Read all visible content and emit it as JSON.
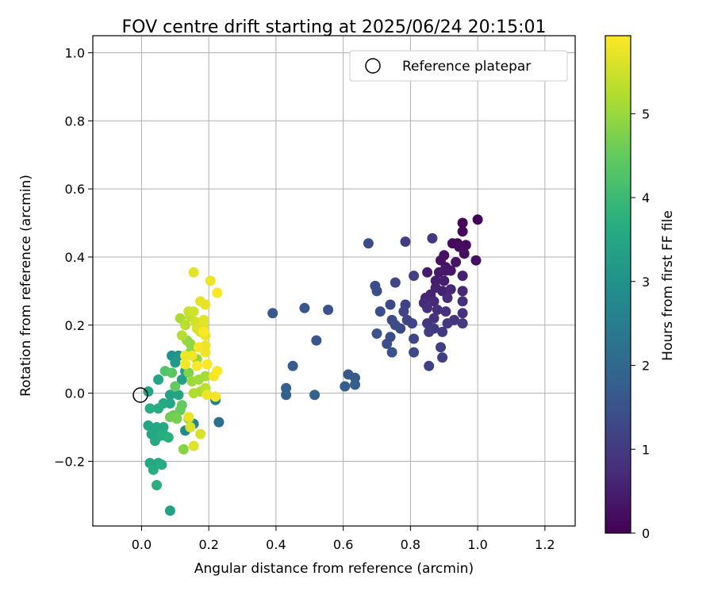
{
  "chart_data": {
    "type": "scatter",
    "title": "FOV centre drift starting at 2025/06/24 20:15:01",
    "xlabel": "Angular distance from reference (arcmin)",
    "ylabel": "Rotation from reference (arcmin)",
    "xlim": [
      -0.145,
      1.29
    ],
    "ylim": [
      -0.39,
      1.05
    ],
    "xticks": [
      0.0,
      0.2,
      0.4,
      0.6,
      0.8,
      1.0,
      1.2
    ],
    "xtick_labels": [
      "0.0",
      "0.2",
      "0.4",
      "0.6",
      "0.8",
      "1.0",
      "1.2"
    ],
    "yticks": [
      -0.2,
      0.0,
      0.2,
      0.4,
      0.6,
      0.8,
      1.0
    ],
    "ytick_labels": [
      "−0.2",
      "0.0",
      "0.2",
      "0.4",
      "0.6",
      "0.8",
      "1.0"
    ],
    "grid": true,
    "legend_position": "top-right",
    "reference": {
      "name": "Reference platepar",
      "x": 0.0,
      "y": 0.0
    },
    "colorbar": {
      "label": "Hours from first FF file",
      "range": [
        0,
        5.93
      ],
      "ticks": [
        0,
        1,
        2,
        3,
        4,
        5
      ],
      "tick_labels": [
        "0",
        "1",
        "2",
        "3",
        "4",
        "5"
      ],
      "colormap": "viridis"
    },
    "points": [
      [
        1.0,
        0.51,
        0.05
      ],
      [
        0.955,
        0.5,
        0.08
      ],
      [
        0.955,
        0.475,
        0.1
      ],
      [
        0.94,
        0.44,
        0.12
      ],
      [
        0.925,
        0.44,
        0.15
      ],
      [
        0.965,
        0.435,
        0.18
      ],
      [
        0.945,
        0.43,
        0.2
      ],
      [
        0.96,
        0.41,
        0.22
      ],
      [
        0.995,
        0.39,
        0.25
      ],
      [
        0.9,
        0.405,
        0.28
      ],
      [
        0.89,
        0.39,
        0.3
      ],
      [
        0.935,
        0.385,
        0.32
      ],
      [
        0.905,
        0.37,
        0.35
      ],
      [
        0.92,
        0.36,
        0.38
      ],
      [
        0.905,
        0.36,
        0.4
      ],
      [
        0.885,
        0.355,
        0.42
      ],
      [
        0.85,
        0.355,
        0.45
      ],
      [
        0.875,
        0.33,
        0.48
      ],
      [
        0.9,
        0.33,
        0.5
      ],
      [
        0.955,
        0.345,
        0.52
      ],
      [
        0.875,
        0.31,
        0.55
      ],
      [
        0.895,
        0.3,
        0.58
      ],
      [
        0.86,
        0.29,
        0.6
      ],
      [
        0.845,
        0.28,
        0.62
      ],
      [
        0.955,
        0.3,
        0.65
      ],
      [
        0.92,
        0.305,
        0.68
      ],
      [
        0.87,
        0.27,
        0.7
      ],
      [
        0.84,
        0.265,
        0.72
      ],
      [
        0.91,
        0.28,
        0.75
      ],
      [
        0.955,
        0.27,
        0.78
      ],
      [
        0.85,
        0.25,
        0.8
      ],
      [
        0.88,
        0.245,
        0.82
      ],
      [
        0.905,
        0.24,
        0.85
      ],
      [
        0.955,
        0.235,
        0.88
      ],
      [
        0.87,
        0.22,
        0.9
      ],
      [
        0.93,
        0.215,
        0.92
      ],
      [
        0.85,
        0.205,
        0.95
      ],
      [
        0.91,
        0.205,
        0.98
      ],
      [
        0.955,
        0.205,
        1.0
      ],
      [
        0.87,
        0.19,
        1.02
      ],
      [
        0.895,
        0.18,
        1.05
      ],
      [
        0.855,
        0.18,
        1.08
      ],
      [
        0.89,
        0.135,
        1.1
      ],
      [
        0.895,
        0.105,
        1.12
      ],
      [
        0.855,
        0.08,
        1.15
      ],
      [
        0.865,
        0.455,
        1.0
      ],
      [
        0.785,
        0.445,
        1.1
      ],
      [
        0.81,
        0.345,
        1.15
      ],
      [
        0.785,
        0.26,
        1.18
      ],
      [
        0.78,
        0.24,
        1.2
      ],
      [
        0.79,
        0.215,
        1.22
      ],
      [
        0.805,
        0.205,
        1.25
      ],
      [
        0.77,
        0.19,
        1.28
      ],
      [
        0.81,
        0.16,
        1.3
      ],
      [
        0.81,
        0.12,
        1.32
      ],
      [
        0.755,
        0.325,
        1.3
      ],
      [
        0.74,
        0.26,
        1.35
      ],
      [
        0.745,
        0.215,
        1.38
      ],
      [
        0.755,
        0.2,
        1.4
      ],
      [
        0.74,
        0.165,
        1.42
      ],
      [
        0.73,
        0.145,
        1.45
      ],
      [
        0.745,
        0.12,
        1.48
      ],
      [
        0.71,
        0.24,
        1.45
      ],
      [
        0.7,
        0.3,
        1.4
      ],
      [
        0.695,
        0.315,
        1.42
      ],
      [
        0.7,
        0.175,
        1.5
      ],
      [
        0.675,
        0.44,
        1.4
      ],
      [
        0.555,
        0.245,
        1.55
      ],
      [
        0.52,
        0.155,
        1.6
      ],
      [
        0.485,
        0.25,
        1.65
      ],
      [
        0.39,
        0.235,
        1.7
      ],
      [
        0.45,
        0.08,
        1.75
      ],
      [
        0.43,
        0.015,
        1.8
      ],
      [
        0.43,
        -0.005,
        1.85
      ],
      [
        0.515,
        -0.005,
        1.9
      ],
      [
        0.615,
        0.055,
        1.65
      ],
      [
        0.635,
        0.045,
        1.7
      ],
      [
        0.605,
        0.02,
        1.75
      ],
      [
        0.635,
        0.025,
        1.8
      ],
      [
        0.23,
        -0.085,
        2.2
      ],
      [
        0.22,
        -0.02,
        2.6
      ],
      [
        0.155,
        -0.09,
        2.7
      ],
      [
        0.13,
        -0.11,
        2.8
      ],
      [
        0.09,
        0.11,
        3.0
      ],
      [
        0.11,
        0.11,
        3.1
      ],
      [
        0.1,
        0.09,
        3.2
      ],
      [
        0.13,
        0.065,
        3.3
      ],
      [
        0.12,
        0.04,
        3.35
      ],
      [
        0.085,
        -0.005,
        3.4
      ],
      [
        0.11,
        -0.005,
        3.45
      ],
      [
        0.05,
        0.04,
        3.5
      ],
      [
        0.085,
        -0.03,
        3.55
      ],
      [
        0.065,
        -0.03,
        3.6
      ],
      [
        0.05,
        -0.045,
        3.65
      ],
      [
        0.025,
        -0.045,
        3.7
      ],
      [
        0.02,
        0.005,
        3.45
      ],
      [
        0.02,
        -0.095,
        3.5
      ],
      [
        0.045,
        -0.1,
        3.55
      ],
      [
        0.065,
        -0.1,
        3.6
      ],
      [
        0.07,
        -0.125,
        3.65
      ],
      [
        0.055,
        -0.125,
        3.7
      ],
      [
        0.08,
        -0.13,
        3.75
      ],
      [
        0.03,
        -0.12,
        3.5
      ],
      [
        0.04,
        -0.14,
        3.6
      ],
      [
        0.025,
        -0.205,
        3.55
      ],
      [
        0.05,
        -0.205,
        3.6
      ],
      [
        0.06,
        -0.21,
        3.65
      ],
      [
        0.035,
        -0.225,
        3.7
      ],
      [
        0.045,
        -0.27,
        3.75
      ],
      [
        0.085,
        -0.345,
        3.4
      ],
      [
        0.07,
        0.065,
        4.3
      ],
      [
        0.09,
        0.06,
        4.4
      ],
      [
        0.1,
        0.02,
        4.5
      ],
      [
        0.12,
        -0.035,
        4.5
      ],
      [
        0.115,
        -0.05,
        4.55
      ],
      [
        0.095,
        -0.065,
        4.6
      ],
      [
        0.085,
        -0.07,
        4.65
      ],
      [
        0.105,
        -0.075,
        4.7
      ],
      [
        0.14,
        -0.075,
        4.8
      ],
      [
        0.125,
        -0.165,
        4.85
      ],
      [
        0.14,
        0.06,
        4.8
      ],
      [
        0.145,
        0.12,
        4.9
      ],
      [
        0.145,
        0.145,
        4.95
      ],
      [
        0.135,
        0.155,
        5.0
      ],
      [
        0.165,
        0.1,
        5.0
      ],
      [
        0.15,
        0.035,
        5.05
      ],
      [
        0.17,
        0.04,
        5.1
      ],
      [
        0.19,
        0.05,
        5.15
      ],
      [
        0.175,
        0.005,
        5.2
      ],
      [
        0.155,
        0.0,
        5.25
      ],
      [
        0.19,
        0.005,
        5.3
      ],
      [
        0.19,
        0.015,
        5.35
      ],
      [
        0.115,
        0.22,
        5.2
      ],
      [
        0.12,
        0.17,
        5.3
      ],
      [
        0.13,
        0.2,
        5.35
      ],
      [
        0.145,
        0.225,
        5.4
      ],
      [
        0.14,
        0.24,
        5.45
      ],
      [
        0.155,
        0.24,
        5.5
      ],
      [
        0.16,
        0.21,
        5.55
      ],
      [
        0.165,
        0.19,
        5.6
      ],
      [
        0.175,
        0.18,
        5.6
      ],
      [
        0.185,
        0.195,
        5.65
      ],
      [
        0.185,
        0.215,
        5.7
      ],
      [
        0.175,
        0.27,
        5.7
      ],
      [
        0.19,
        0.26,
        5.75
      ],
      [
        0.19,
        0.17,
        5.75
      ],
      [
        0.19,
        0.14,
        5.8
      ],
      [
        0.19,
        0.12,
        5.8
      ],
      [
        0.17,
        0.135,
        5.85
      ],
      [
        0.15,
        0.11,
        5.85
      ],
      [
        0.13,
        0.11,
        5.8
      ],
      [
        0.13,
        0.085,
        5.85
      ],
      [
        0.165,
        0.08,
        5.9
      ],
      [
        0.195,
        0.085,
        5.9
      ],
      [
        0.205,
        0.33,
        5.8
      ],
      [
        0.155,
        0.355,
        5.7
      ],
      [
        0.225,
        0.295,
        5.9
      ],
      [
        0.215,
        0.05,
        5.85
      ],
      [
        0.225,
        0.065,
        5.9
      ],
      [
        0.22,
        -0.01,
        5.85
      ],
      [
        0.195,
        -0.005,
        5.8
      ],
      [
        0.14,
        -0.07,
        5.75
      ],
      [
        0.175,
        -0.12,
        5.6
      ],
      [
        0.145,
        -0.1,
        5.6
      ],
      [
        0.155,
        -0.155,
        5.65
      ],
      [
        0.185,
        0.18,
        5.9
      ]
    ]
  }
}
